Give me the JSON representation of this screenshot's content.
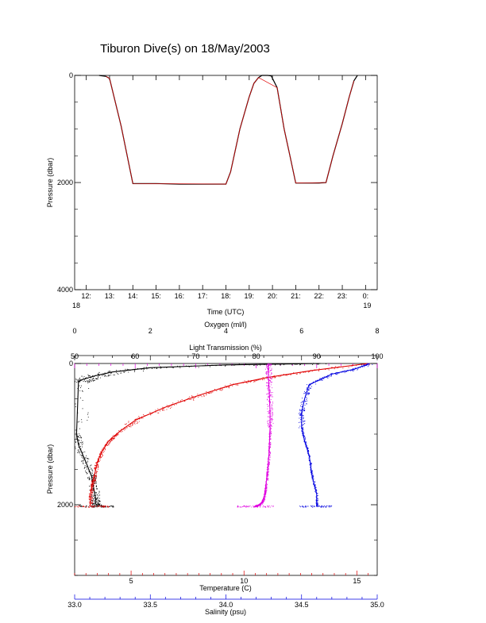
{
  "title": "Tiburon Dive(s) on 18/May/2003",
  "colors": {
    "black": "#000000",
    "red": "#e00000",
    "magenta": "#e000e0",
    "blue": "#0000e0"
  },
  "chart_data": [
    {
      "type": "line",
      "xlabel": "Time (UTC)",
      "ylabel": "Pressure (dbar)",
      "xlim": [
        11.5,
        24.5
      ],
      "ylim": [
        4000,
        0
      ],
      "ytick_labels": [
        "0",
        "2000",
        "4000"
      ],
      "xtick_values": [
        12,
        13,
        14,
        15,
        16,
        17,
        18,
        19,
        20,
        21,
        22,
        23,
        24
      ],
      "xtick_labels": [
        "12:",
        "13:",
        "14:",
        "15:",
        "16:",
        "17:",
        "18:",
        "19:",
        "20:",
        "21:",
        "22:",
        "23:",
        "0:"
      ],
      "date_labels": [
        {
          "x": 11.5,
          "text": "18"
        },
        {
          "x": 24,
          "text": "19"
        }
      ],
      "series": [
        {
          "color": "black",
          "x": [
            12.55,
            12.7,
            12.85,
            13.0,
            13.5,
            14.0,
            15.0,
            16.0,
            17.0,
            18.0,
            18.2,
            18.6,
            19.0,
            19.2,
            19.4,
            19.55,
            19.8,
            19.95,
            20.2,
            20.5,
            20.75,
            21.0,
            21.2,
            21.5,
            22.0,
            22.3,
            22.6,
            23.0,
            23.3,
            23.5,
            23.65
          ],
          "y": [
            0,
            10,
            20,
            60,
            950,
            2020,
            2020,
            2030,
            2030,
            2030,
            1800,
            1000,
            400,
            150,
            40,
            0,
            0,
            10,
            230,
            1000,
            1500,
            2010,
            2010,
            2010,
            2010,
            2000,
            1500,
            900,
            400,
            100,
            0
          ]
        },
        {
          "color": "red",
          "x": [
            12.85,
            13.0,
            13.5,
            14.0,
            18.0,
            18.2,
            18.6,
            19.0,
            19.2,
            19.4,
            20.2,
            20.5,
            20.75,
            21.0,
            22.3,
            22.6,
            23.0,
            23.3,
            23.5
          ],
          "y": [
            20,
            60,
            950,
            2020,
            2030,
            1800,
            1000,
            400,
            150,
            40,
            230,
            1000,
            1500,
            2010,
            2000,
            1500,
            900,
            400,
            100
          ]
        }
      ]
    },
    {
      "type": "scatter",
      "ylabel": "Pressure (dbar)",
      "ylim": [
        3000,
        0
      ],
      "ytick_labels": [
        "0",
        "2000"
      ],
      "axes": [
        {
          "label": "Oxygen (ml/l)",
          "color": "black",
          "position": "top",
          "range": [
            0,
            8
          ],
          "ticks": [
            0,
            2,
            4,
            6,
            8
          ],
          "tick_labels": [
            "0",
            "2",
            "4",
            "6",
            "8"
          ]
        },
        {
          "label": "Light Transmission (%)",
          "color": "magenta",
          "position": "top",
          "range": [
            50,
            100
          ],
          "ticks": [
            50,
            60,
            70,
            80,
            90,
            100
          ],
          "tick_labels": [
            "50",
            "60",
            "70",
            "80",
            "90",
            "100"
          ]
        },
        {
          "label": "Temperature (C)",
          "color": "red",
          "position": "bottom",
          "range": [
            2.5,
            15.9
          ],
          "ticks": [
            5,
            10,
            15
          ],
          "tick_labels": [
            "5",
            "10",
            "15"
          ]
        },
        {
          "label": "Salinity (psu)",
          "color": "blue",
          "position": "bottom",
          "range": [
            33.0,
            35.0
          ],
          "ticks": [
            33.0,
            33.5,
            34.0,
            34.5,
            35.0
          ],
          "tick_labels": [
            "33.0",
            "33.5",
            "34.0",
            "34.5",
            "35.0"
          ]
        }
      ],
      "series": [
        {
          "axis": "oxygen",
          "color": "black",
          "x": [
            6.5,
            4.0,
            2.0,
            1.0,
            0.5,
            0.2,
            0.1,
            0.05,
            0.1,
            0.3,
            0.45,
            0.5,
            0.55,
            0.55,
            0.6
          ],
          "y": [
            0,
            20,
            60,
            120,
            180,
            230,
            260,
            1000,
            1150,
            1400,
            1600,
            1750,
            1900,
            1980,
            2020
          ]
        },
        {
          "axis": "temperature",
          "color": "red",
          "x": [
            15.5,
            13.0,
            11.0,
            9.5,
            8.0,
            6.5,
            5.2,
            4.5,
            4.0,
            3.7,
            3.5,
            3.4,
            3.3,
            3.2,
            3.2
          ],
          "y": [
            0,
            100,
            200,
            300,
            450,
            620,
            800,
            960,
            1100,
            1250,
            1400,
            1550,
            1700,
            1850,
            2020
          ]
        },
        {
          "axis": "salinity",
          "color": "blue",
          "x": [
            34.95,
            34.85,
            34.7,
            34.55,
            34.52,
            34.5,
            34.5,
            34.52,
            34.55,
            34.57,
            34.6,
            34.6
          ],
          "y": [
            0,
            80,
            150,
            300,
            500,
            700,
            900,
            1100,
            1300,
            1600,
            1850,
            2020
          ]
        },
        {
          "axis": "transmission",
          "color": "magenta",
          "x": [
            82.0,
            82.0,
            82.1,
            82.2,
            82.3,
            82.3,
            82.2,
            82.1,
            81.9,
            81.7,
            81.5,
            81.3,
            81.0,
            80.5,
            79.8
          ],
          "y": [
            0,
            100,
            300,
            500,
            700,
            900,
            1100,
            1300,
            1500,
            1650,
            1800,
            1900,
            1960,
            2000,
            2020
          ]
        }
      ]
    }
  ]
}
